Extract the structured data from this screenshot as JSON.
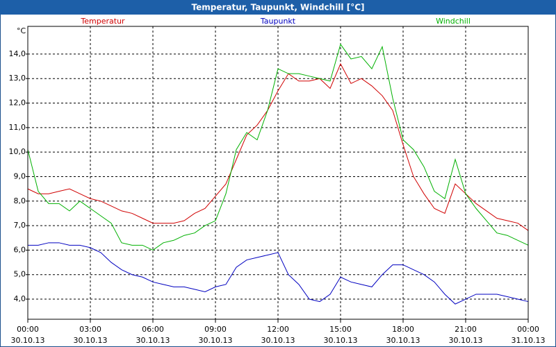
{
  "chart_data": {
    "type": "line",
    "title": "Temperatur, Taupunkt, Windchill [°C]",
    "y_unit": "°C",
    "x": [
      0,
      0.5,
      1,
      1.5,
      2,
      2.5,
      3,
      3.5,
      4,
      4.5,
      5,
      5.5,
      6,
      6.5,
      7,
      7.5,
      8,
      8.5,
      9,
      9.5,
      10,
      10.5,
      11,
      11.5,
      12,
      12.5,
      13,
      13.5,
      14,
      14.5,
      15,
      15.5,
      16,
      16.5,
      17,
      17.5,
      18,
      18.5,
      19,
      19.5,
      20,
      20.5,
      21,
      21.5,
      22,
      22.5,
      23,
      23.5,
      24
    ],
    "series": [
      {
        "name": "Temperatur",
        "color": "#d00000",
        "values": [
          8.5,
          8.3,
          8.3,
          8.4,
          8.5,
          8.3,
          8.1,
          8.0,
          7.8,
          7.6,
          7.5,
          7.3,
          7.1,
          7.1,
          7.1,
          7.2,
          7.5,
          7.7,
          8.2,
          8.7,
          9.7,
          10.7,
          11.1,
          11.7,
          12.5,
          13.2,
          12.9,
          12.9,
          13.0,
          12.6,
          13.6,
          12.8,
          13.0,
          12.7,
          12.3,
          11.7,
          10.3,
          9.0,
          8.3,
          7.7,
          7.5,
          8.7,
          8.3,
          7.9,
          7.6,
          7.3,
          7.2,
          7.1,
          6.8
        ]
      },
      {
        "name": "Taupunkt",
        "color": "#0000c0",
        "values": [
          6.2,
          6.2,
          6.3,
          6.3,
          6.2,
          6.2,
          6.1,
          5.9,
          5.5,
          5.2,
          5.0,
          4.9,
          4.7,
          4.6,
          4.5,
          4.5,
          4.4,
          4.3,
          4.5,
          4.6,
          5.3,
          5.6,
          5.7,
          5.8,
          5.9,
          5.0,
          4.6,
          4.0,
          3.9,
          4.2,
          4.9,
          4.7,
          4.6,
          4.5,
          5.0,
          5.4,
          5.4,
          5.2,
          5.0,
          4.7,
          4.2,
          3.8,
          4.0,
          4.2,
          4.2,
          4.2,
          4.1,
          4.0,
          3.9
        ]
      },
      {
        "name": "Windchill",
        "color": "#00b000",
        "values": [
          10.1,
          8.4,
          7.9,
          7.9,
          7.6,
          8.0,
          7.7,
          7.4,
          7.1,
          6.3,
          6.2,
          6.2,
          6.0,
          6.3,
          6.4,
          6.6,
          6.7,
          7.0,
          7.2,
          8.3,
          10.1,
          10.8,
          10.5,
          11.7,
          13.4,
          13.2,
          13.2,
          13.1,
          13.0,
          12.9,
          14.4,
          13.8,
          13.9,
          13.4,
          14.3,
          12.2,
          10.5,
          10.1,
          9.4,
          8.4,
          8.1,
          9.7,
          8.3,
          7.7,
          7.2,
          6.7,
          6.6,
          6.4,
          6.2
        ]
      }
    ],
    "xlim": [
      0,
      24
    ],
    "xticks": [
      {
        "value": 0,
        "label": "00:00"
      },
      {
        "value": 3,
        "label": "03:00"
      },
      {
        "value": 6,
        "label": "06:00"
      },
      {
        "value": 9,
        "label": "09:00"
      },
      {
        "value": 12,
        "label": "12:00"
      },
      {
        "value": 15,
        "label": "15:00"
      },
      {
        "value": 18,
        "label": "18:00"
      },
      {
        "value": 21,
        "label": "21:00"
      },
      {
        "value": 24,
        "label": "00:00"
      }
    ],
    "xtick_dates": [
      "30.10.13",
      "30.10.13",
      "30.10.13",
      "30.10.13",
      "30.10.13",
      "30.10.13",
      "30.10.13",
      "30.10.13",
      "31.10.13"
    ],
    "ylim": [
      3.18,
      15.13
    ],
    "yticks": [
      {
        "value": 4,
        "label": "4,0"
      },
      {
        "value": 5,
        "label": "5,0"
      },
      {
        "value": 6,
        "label": "6,0"
      },
      {
        "value": 7,
        "label": "7,0"
      },
      {
        "value": 8,
        "label": "8,0"
      },
      {
        "value": 9,
        "label": "9,0"
      },
      {
        "value": 10,
        "label": "10,0"
      },
      {
        "value": 11,
        "label": "11,0"
      },
      {
        "value": 12,
        "label": "12,0"
      },
      {
        "value": 13,
        "label": "13,0"
      },
      {
        "value": 14,
        "label": "14,0"
      }
    ],
    "grid": true
  }
}
